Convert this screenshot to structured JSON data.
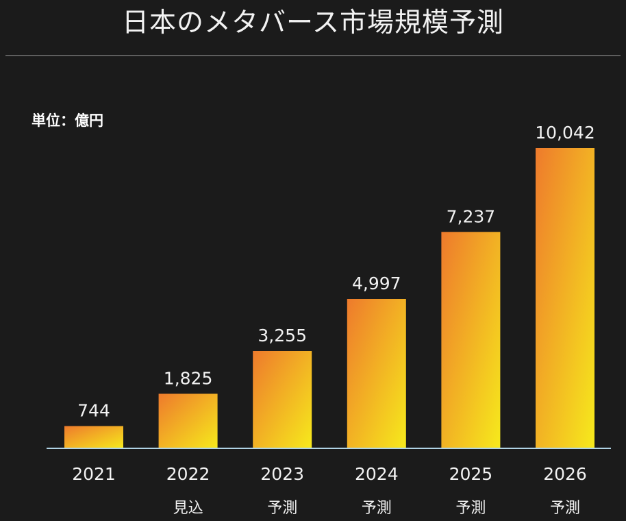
{
  "chart_data": {
    "type": "bar",
    "title": "日本のメタバース市場規模予測",
    "unit_label": "単位：億円",
    "categories": [
      "2021",
      "2022",
      "2023",
      "2024",
      "2025",
      "2026"
    ],
    "category_notes": [
      "",
      "見込",
      "予測",
      "予測",
      "予測",
      "予測"
    ],
    "values": [
      744,
      1825,
      3255,
      4997,
      7237,
      10042
    ],
    "value_labels": [
      "744",
      "1,825",
      "3,255",
      "4,997",
      "7,237",
      "10,042"
    ],
    "xlabel": "",
    "ylabel": "",
    "ylim": [
      0,
      10042
    ],
    "grid": false,
    "legend": "none"
  },
  "colors": {
    "background": "#1b1b1b",
    "bar_gradient_start": "#ee7a2c",
    "bar_gradient_end": "#f6ea1c",
    "axis_line": "#b0d4e6",
    "text": "#f2f2f2"
  }
}
